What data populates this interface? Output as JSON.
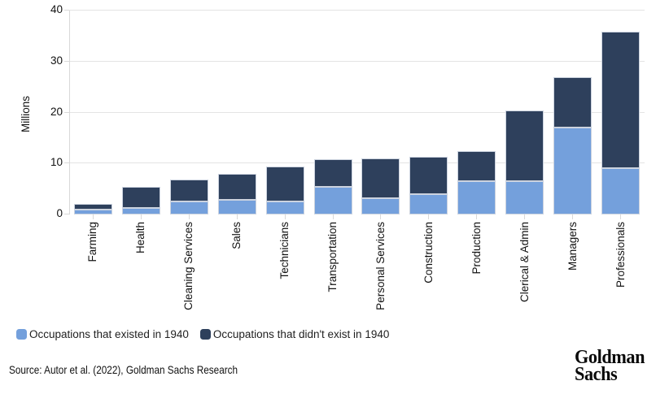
{
  "chart_data": {
    "type": "bar",
    "stacked": true,
    "title": "",
    "ylabel": "Millions",
    "xlabel": "",
    "ylim": [
      0,
      40
    ],
    "y_ticks": [
      0,
      10,
      20,
      30,
      40
    ],
    "grid": true,
    "legend_position": "bottom",
    "categories": [
      "Farming",
      "Health",
      "Cleaning Services",
      "Sales",
      "Technicians",
      "Transportation",
      "Personal Services",
      "Construction",
      "Production",
      "Clerical & Admin",
      "Managers",
      "Professionals"
    ],
    "series": [
      {
        "name": "Occupations that existed in 1940",
        "color": "#74a0dc",
        "values": [
          1.0,
          1.3,
          2.6,
          2.9,
          2.5,
          5.5,
          3.2,
          4.0,
          6.6,
          6.6,
          17.1,
          9.1
        ]
      },
      {
        "name": "Occupations that didn't exist in 1940",
        "color": "#2e405c",
        "values": [
          1.0,
          4.2,
          4.2,
          5.1,
          6.9,
          5.3,
          7.8,
          7.3,
          5.9,
          13.8,
          9.8,
          26.8
        ]
      }
    ],
    "totals": [
      2.0,
      5.5,
      6.8,
      8.0,
      9.4,
      10.8,
      11.0,
      11.3,
      12.5,
      20.4,
      26.9,
      35.9
    ]
  },
  "colors": {
    "grid": "#e4e4e4",
    "axis": "#d9d9d9",
    "text": "#111111",
    "segment_border": "#ccd3df",
    "background": "#ffffff"
  },
  "footer": {
    "source": "Source: Autor et al. (2022), Goldman Sachs Research",
    "logo_line1": "Goldman",
    "logo_line2": "Sachs"
  }
}
